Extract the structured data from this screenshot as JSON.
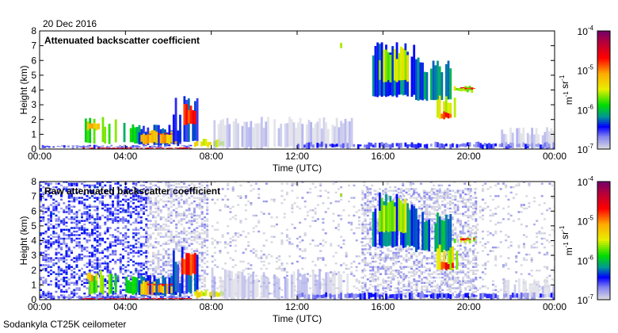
{
  "header": {
    "date": "20 Dec 2016"
  },
  "footer": {
    "instrument": "Sodankyla CT25K ceilometer"
  },
  "chart_data": [
    {
      "type": "heatmap",
      "title": "Attenuated backscatter coefficient",
      "xlabel": "Time (UTC)",
      "ylabel": "Height (km)",
      "xlim": [
        0,
        24
      ],
      "ylim": [
        0,
        8
      ],
      "xticks": [
        "00:00",
        "04:00",
        "08:00",
        "12:00",
        "16:00",
        "20:00",
        "00:00"
      ],
      "yticks": [
        "0",
        "1",
        "2",
        "3",
        "4",
        "5",
        "6",
        "7",
        "8"
      ],
      "colorbar": {
        "label": "m-1 sr-1",
        "ticks": [
          "10-7",
          "10-6",
          "10-5",
          "10-4"
        ],
        "range_log10": [
          -7,
          -4
        ]
      },
      "features": [
        {
          "t": [
            0,
            7
          ],
          "h": [
            0,
            0.3
          ],
          "log": -6.7
        },
        {
          "t": [
            2,
            7
          ],
          "h": [
            0,
            0.12
          ],
          "log": -4.6
        },
        {
          "t": [
            2.1,
            3.6
          ],
          "h": [
            0.3,
            2.2
          ],
          "log": -5.8
        },
        {
          "t": [
            2.2,
            2.8
          ],
          "h": [
            1.2,
            2.0
          ],
          "log": -5.2
        },
        {
          "t": [
            3.9,
            4.6
          ],
          "h": [
            0.3,
            1.8
          ],
          "log": -6.0
        },
        {
          "t": [
            4.6,
            6.5
          ],
          "h": [
            0.2,
            1.7
          ],
          "log": -6.4
        },
        {
          "t": [
            4.7,
            6.3
          ],
          "h": [
            0.3,
            1.3
          ],
          "log": -5.2
        },
        {
          "t": [
            5.0,
            6.3
          ],
          "h": [
            0.9,
            1.1
          ],
          "log": -4.6
        },
        {
          "t": [
            6.2,
            7.3
          ],
          "h": [
            0.4,
            3.6
          ],
          "log": -6.4
        },
        {
          "t": [
            6.6,
            7.2
          ],
          "h": [
            1.6,
            3.2
          ],
          "log": -4.8
        },
        {
          "t": [
            7.2,
            8.5
          ],
          "h": [
            0.1,
            0.7
          ],
          "log": -5.5
        },
        {
          "t": [
            8.0,
            14.5
          ],
          "h": [
            0,
            2.2
          ],
          "log": -6.95
        },
        {
          "t": [
            12,
            24
          ],
          "h": [
            0,
            0.5
          ],
          "log": -6.6
        },
        {
          "t": [
            14,
            14.1
          ],
          "h": [
            6.8,
            7.2
          ],
          "log": -5.5
        },
        {
          "t": [
            15.5,
            17.5
          ],
          "h": [
            3.5,
            7.4
          ],
          "log": -6.3
        },
        {
          "t": [
            15.8,
            17.2
          ],
          "h": [
            4.5,
            7.0
          ],
          "log": -5.6
        },
        {
          "t": [
            17.5,
            19.2
          ],
          "h": [
            3.2,
            6.2
          ],
          "log": -6.2
        },
        {
          "t": [
            18.5,
            19.5
          ],
          "h": [
            2.0,
            3.8
          ],
          "log": -5.5
        },
        {
          "t": [
            18.7,
            19.3
          ],
          "h": [
            2.0,
            2.6
          ],
          "log": -4.8
        },
        {
          "t": [
            19.3,
            20.3
          ],
          "h": [
            3.8,
            4.3
          ],
          "log": -5.6
        },
        {
          "t": [
            19.6,
            20.3
          ],
          "h": [
            4.0,
            4.2
          ],
          "log": -4.7
        },
        {
          "t": [
            21.5,
            24
          ],
          "h": [
            0,
            1.5
          ],
          "log": -6.95
        }
      ]
    },
    {
      "type": "heatmap",
      "title": "Raw attenuated backscatter coefficient",
      "xlabel": "Time (UTC)",
      "ylabel": "Height (km)",
      "xlim": [
        0,
        24
      ],
      "ylim": [
        0,
        8
      ],
      "xticks": [
        "00:00",
        "04:00",
        "08:00",
        "12:00",
        "16:00",
        "20:00",
        "00:00"
      ],
      "yticks": [
        "0",
        "1",
        "2",
        "3",
        "4",
        "5",
        "6",
        "7",
        "8"
      ],
      "colorbar": {
        "label": "m-1 sr-1",
        "ticks": [
          "10-7",
          "10-6",
          "10-5",
          "10-4"
        ],
        "range_log10": [
          -7,
          -4
        ]
      },
      "noise_regions": [
        {
          "t": [
            0,
            5
          ],
          "h": [
            0,
            8
          ],
          "log": -6.6
        },
        {
          "t": [
            5,
            7.8
          ],
          "h": [
            0,
            8
          ],
          "log": -6.95
        },
        {
          "t": [
            15,
            20.3
          ],
          "h": [
            0,
            7.5
          ],
          "log": -6.95
        },
        {
          "t": [
            8,
            24
          ],
          "h": [
            0,
            8
          ],
          "log": -7
        }
      ]
    }
  ]
}
